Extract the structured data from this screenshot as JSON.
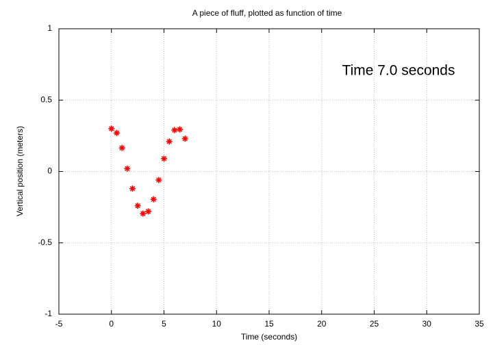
{
  "chart_data": {
    "type": "scatter",
    "title": "A piece of fluff, plotted as function of time",
    "x_label": "Time (seconds)",
    "y_label": "Vertical position (meters)",
    "annotation": "Time  7.0 seconds",
    "x": [
      0,
      0.5,
      1,
      1.5,
      2,
      2.5,
      3,
      3.5,
      4,
      4.5,
      5,
      5.5,
      6,
      6.5,
      7
    ],
    "values": [
      0.3,
      0.27,
      0.165,
      0.02,
      -0.12,
      -0.24,
      -0.295,
      -0.28,
      -0.195,
      -0.06,
      0.09,
      0.21,
      0.29,
      0.295,
      0.23
    ],
    "color": "#ff0000",
    "xlim": [
      -5,
      35
    ],
    "xticks": [
      -5,
      0,
      5,
      10,
      15,
      20,
      25,
      30,
      35
    ],
    "ylim": [
      -1,
      1
    ],
    "yticks": [
      -1,
      -0.5,
      0,
      0.5,
      1
    ],
    "grid": true
  }
}
